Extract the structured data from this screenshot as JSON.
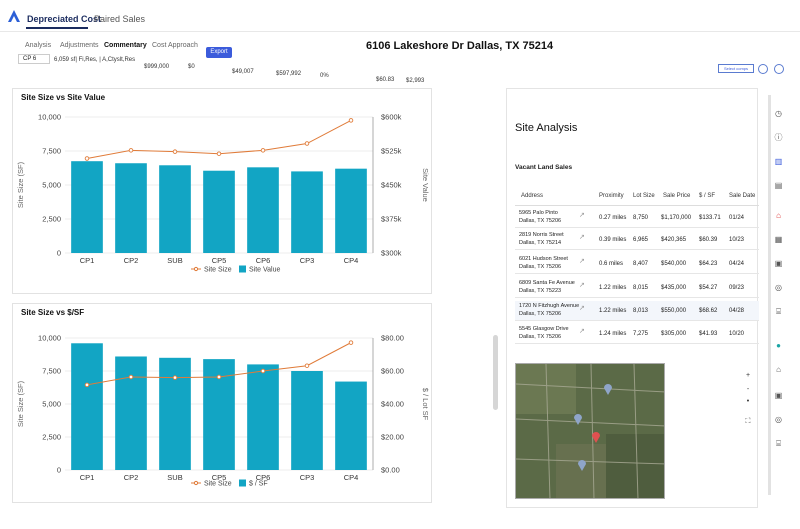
{
  "tabs": [
    {
      "label": "Depreciated Cost"
    },
    {
      "label": "Paired Sales"
    }
  ],
  "subtabs": [
    {
      "label": "Analysis"
    },
    {
      "label": "Adjustments"
    },
    {
      "label": "Commentary"
    },
    {
      "label": "Cost Approach"
    }
  ],
  "export_label": "Export",
  "address": "6106 Lakeshore Dr Dallas, TX 75214",
  "strip": {
    "cp": "CP 6",
    "desc": "6,059 sf| Fi,Res, | A,Ctyslt,Res",
    "price": "$999,000",
    "v1": "$0",
    "v2": "$49,007",
    "v3": "$597,992",
    "v4": "0%",
    "v5": "$60.83",
    "v6": "$2,993"
  },
  "selector_label": "Select comps",
  "chart_data": [
    {
      "type": "bar+line",
      "title": "Site Size vs Site Value",
      "categories": [
        "CP1",
        "CP2",
        "SUB",
        "CP5",
        "CP6",
        "CP3",
        "CP4"
      ],
      "series": [
        {
          "name": "Site Size",
          "kind": "line",
          "color": "#e07b39",
          "values": [
            6950,
            7550,
            7450,
            7300,
            7550,
            8050,
            9750
          ]
        },
        {
          "name": "Site Value",
          "kind": "bar",
          "color": "#12a5c4",
          "values": [
            6750,
            6600,
            6450,
            6050,
            6300,
            6000,
            6200
          ]
        }
      ],
      "ylabel": "Site Size (SF)",
      "ylim": [
        0,
        10000
      ],
      "yticks": [
        "0",
        "2,500",
        "5,000",
        "7,500",
        "10,000"
      ],
      "y2label": "Site Value",
      "y2ticks": [
        "$300k",
        "$375k",
        "$450k",
        "$525k",
        "$600k"
      ]
    },
    {
      "type": "bar+line",
      "title": "Site Size vs $/SF",
      "categories": [
        "CP1",
        "CP2",
        "SUB",
        "CP5",
        "CP6",
        "CP3",
        "CP4"
      ],
      "series": [
        {
          "name": "Site Size",
          "kind": "line",
          "color": "#e07b39",
          "values": [
            6450,
            7050,
            7000,
            7050,
            7500,
            7900,
            9650
          ]
        },
        {
          "name": "$ / SF",
          "kind": "bar",
          "color": "#12a5c4",
          "values": [
            9600,
            8600,
            8500,
            8400,
            8000,
            7500,
            6700
          ]
        }
      ],
      "ylabel": "Site Size (SF)",
      "ylim": [
        0,
        10000
      ],
      "yticks": [
        "0",
        "2,500",
        "5,000",
        "7,500",
        "10,000"
      ],
      "y2label": "$ / Lot SF",
      "y2ticks": [
        "$0.00",
        "$20.00",
        "$40.00",
        "$60.00",
        "$80.00"
      ]
    }
  ],
  "site": {
    "title": "Site Analysis",
    "subtitle": "Vacant Land Sales",
    "headers": [
      "Address",
      "Proximity",
      "Lot Size",
      "Sale Price",
      "$ / SF",
      "Sale Date"
    ],
    "rows": [
      {
        "a1": "5965 Palo Pinto",
        "a2": "Dallas, TX 75206",
        "prox": "0.27 miles",
        "lot": "8,750",
        "price": "$1,170,000",
        "psf": "$133.71",
        "date": "01/24"
      },
      {
        "a1": "2819 Norris Street",
        "a2": "Dallas, TX 75214",
        "prox": "0.39 miles",
        "lot": "6,965",
        "price": "$420,365",
        "psf": "$60.39",
        "date": "10/23"
      },
      {
        "a1": "6021 Hudson Street",
        "a2": "Dallas, TX 75206",
        "prox": "0.6 miles",
        "lot": "8,407",
        "price": "$540,000",
        "psf": "$64.23",
        "date": "04/24"
      },
      {
        "a1": "6809 Santa Fe Avenue",
        "a2": "Dallas, TX 75223",
        "prox": "1.22 miles",
        "lot": "8,015",
        "price": "$435,000",
        "psf": "$54.27",
        "date": "09/23"
      },
      {
        "a1": "1720 N Fitzhugh Avenue",
        "a2": "Dallas, TX 75206",
        "prox": "1.22 miles",
        "lot": "8,013",
        "price": "$550,000",
        "psf": "$68.62",
        "date": "04/28"
      },
      {
        "a1": "5545 Glasgow Drive",
        "a2": "Dallas, TX 75206",
        "prox": "1.24 miles",
        "lot": "7,275",
        "price": "$305,000",
        "psf": "$41.93",
        "date": "10/20"
      }
    ],
    "map_controls": [
      "+",
      "-",
      "•"
    ]
  }
}
